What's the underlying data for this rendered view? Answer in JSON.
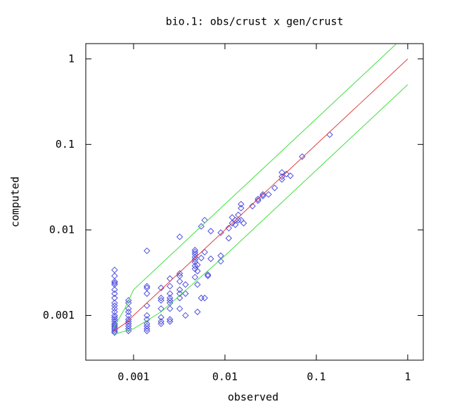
{
  "chart_data": {
    "type": "scatter",
    "title": "bio.1: obs/crust x gen/crust",
    "x_label": "observed",
    "y_label": "computed",
    "log_x": true,
    "log_y": true,
    "xlim": [
      0.0003,
      1.48
    ],
    "ylim": [
      0.0003,
      1.51
    ],
    "xticks": [
      0.001,
      0.01,
      0.1,
      1
    ],
    "yticks": [
      0.001,
      0.01,
      0.1,
      1
    ],
    "series": [
      {
        "type": "scatter",
        "color": "#5050e0",
        "x": [
          0.00062,
          0.00062,
          0.00062,
          0.00062,
          0.00062,
          0.00062,
          0.00062,
          0.00062,
          0.00062,
          0.00062,
          0.00062,
          0.00062,
          0.00062,
          0.00062,
          0.00062,
          0.00062,
          0.00062,
          0.00062,
          0.00062,
          0.00062,
          0.00062,
          0.00062,
          0.00062,
          0.00088,
          0.00088,
          0.00088,
          0.00088,
          0.00088,
          0.00088,
          0.00088,
          0.00088,
          0.00088,
          0.00088,
          0.00088,
          0.0014,
          0.0014,
          0.0014,
          0.0014,
          0.0014,
          0.0014,
          0.0014,
          0.0014,
          0.0014,
          0.0014,
          0.0014,
          0.002,
          0.002,
          0.002,
          0.002,
          0.002,
          0.002,
          0.002,
          0.0025,
          0.0025,
          0.0025,
          0.0025,
          0.0025,
          0.0025,
          0.0025,
          0.0025,
          0.0025,
          0.0032,
          0.0032,
          0.0032,
          0.0032,
          0.0032,
          0.0032,
          0.0032,
          0.0032,
          0.0037,
          0.0037,
          0.0037,
          0.0047,
          0.0047,
          0.0047,
          0.0047,
          0.0047,
          0.0047,
          0.0047,
          0.0047,
          0.0047,
          0.005,
          0.005,
          0.005,
          0.005,
          0.0055,
          0.0055,
          0.0055,
          0.006,
          0.006,
          0.006,
          0.0065,
          0.0065,
          0.007,
          0.007,
          0.009,
          0.009,
          0.009,
          0.011,
          0.011,
          0.012,
          0.012,
          0.013,
          0.013,
          0.014,
          0.014,
          0.015,
          0.015,
          0.015,
          0.016,
          0.02,
          0.023,
          0.023,
          0.026,
          0.026,
          0.03,
          0.035,
          0.042,
          0.042,
          0.042,
          0.047,
          0.052,
          0.07,
          0.14
        ],
        "values": [
          0.0034,
          0.0029,
          0.0025,
          0.0024,
          0.0023,
          0.002,
          0.0018,
          0.0016,
          0.0014,
          0.0013,
          0.0012,
          0.0011,
          0.001,
          0.00095,
          0.0009,
          0.00085,
          0.0008,
          0.00077,
          0.00074,
          0.00071,
          0.00068,
          0.00065,
          0.00063,
          0.0015,
          0.0014,
          0.0012,
          0.0011,
          0.001,
          0.0009,
          0.00085,
          0.0008,
          0.00075,
          0.0007,
          0.00066,
          0.0057,
          0.0022,
          0.0021,
          0.0018,
          0.0013,
          0.001,
          0.0009,
          0.0008,
          0.00075,
          0.0007,
          0.00066,
          0.0021,
          0.0016,
          0.0015,
          0.0012,
          0.00095,
          0.00085,
          0.0008,
          0.0027,
          0.0022,
          0.0018,
          0.0016,
          0.0015,
          0.0014,
          0.0012,
          0.0009,
          0.00085,
          0.0083,
          0.0031,
          0.0029,
          0.0025,
          0.002,
          0.0018,
          0.0016,
          0.0012,
          0.0023,
          0.0018,
          0.001,
          0.0058,
          0.0055,
          0.0052,
          0.0048,
          0.0045,
          0.0042,
          0.0038,
          0.0035,
          0.0028,
          0.0039,
          0.0033,
          0.0023,
          0.0011,
          0.011,
          0.0047,
          0.0016,
          0.013,
          0.0055,
          0.0016,
          0.003,
          0.0029,
          0.0097,
          0.0046,
          0.005,
          0.0043,
          0.0093,
          0.0105,
          0.008,
          0.014,
          0.012,
          0.013,
          0.0115,
          0.015,
          0.013,
          0.02,
          0.018,
          0.013,
          0.012,
          0.019,
          0.023,
          0.022,
          0.026,
          0.025,
          0.026,
          0.031,
          0.047,
          0.042,
          0.039,
          0.045,
          0.043,
          0.072,
          0.13
        ]
      },
      {
        "type": "line",
        "color": "#e04040",
        "x": [
          0.0006,
          0.0008,
          0.001,
          0.002,
          0.01,
          0.1,
          1
        ],
        "values": [
          0.00065,
          0.0008,
          0.001,
          0.002,
          0.01,
          0.1,
          1
        ]
      },
      {
        "type": "line",
        "color": "#40e040",
        "x": [
          0.0006,
          0.0008,
          0.001,
          0.002,
          0.01,
          0.1,
          0.75
        ],
        "values": [
          0.0007,
          0.0012,
          0.002,
          0.004,
          0.02,
          0.2,
          1.5
        ]
      },
      {
        "type": "line",
        "color": "#40e040",
        "x": [
          0.0006,
          0.001,
          0.002,
          0.01,
          0.1,
          1
        ],
        "values": [
          0.0006,
          0.0007,
          0.0011,
          0.005,
          0.05,
          0.5
        ]
      }
    ]
  }
}
